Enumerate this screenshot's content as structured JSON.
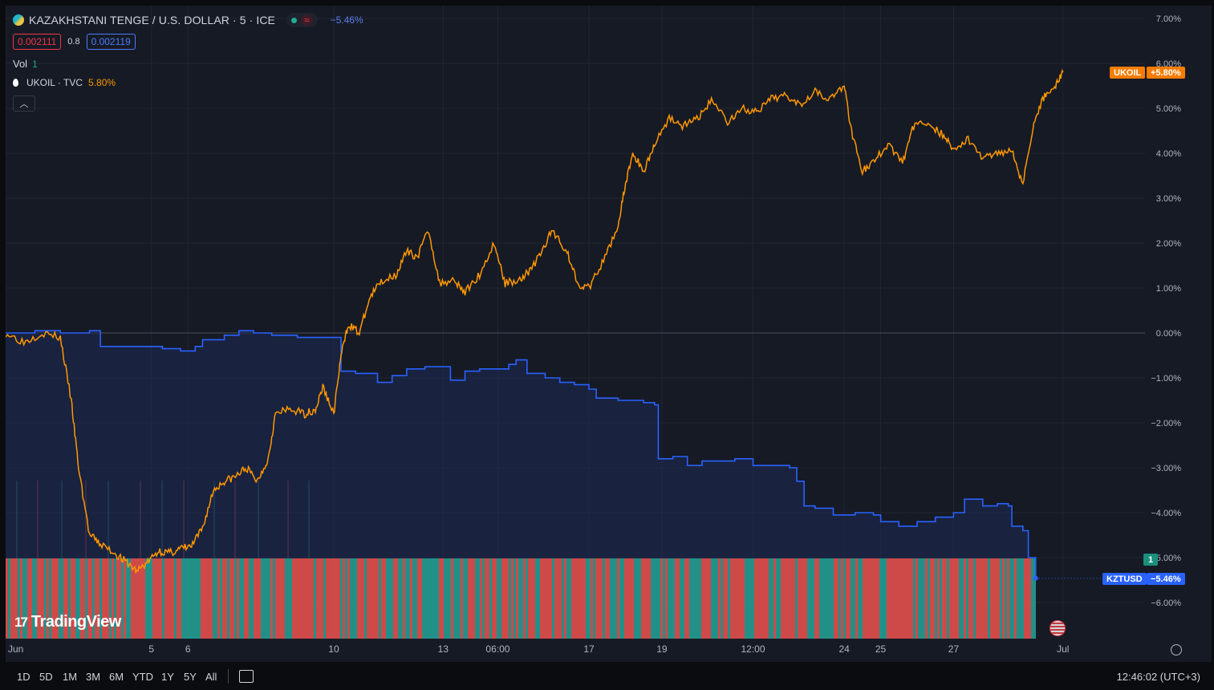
{
  "header": {
    "symbol_title": "KAZAKHSTANI TENGE / U.S. DOLLAR · 5 · ICE",
    "change_pct": "−5.46%",
    "status_wave": "≈",
    "bid": "0.002111",
    "spread": "0.8",
    "ask": "0.002119",
    "vol_label": "Vol",
    "vol_value": "1",
    "compare_label": "UKOIL · TVC",
    "compare_pct": "5.80%",
    "collapse_glyph": "︿"
  },
  "axis_tags": {
    "ukoil_symbol": "UKOIL",
    "ukoil_value": "+5.80%",
    "kztusd_symbol": "KZTUSD",
    "kztusd_value": "−5.46%",
    "volume_value": "1"
  },
  "logo": {
    "mark": "17",
    "text": "TradingView"
  },
  "toolbar": {
    "ranges": [
      "1D",
      "5D",
      "1M",
      "3M",
      "6M",
      "YTD",
      "1Y",
      "5Y",
      "All"
    ],
    "clock": "12:46:02 (UTC+3)"
  },
  "colors": {
    "pane_bg": "#161a25",
    "grid": "#222631",
    "kztusd_line": "#2962ff",
    "kztusd_fill": "#1e2a55",
    "ukoil_line": "#ff9800",
    "vol_up": "#26a69a",
    "vol_down": "#ef5350",
    "ukoil_tag": "#f57c00",
    "kztusd_tag": "#2962ff",
    "vol_tag": "#1a8f7d"
  },
  "icons": [
    "currency-flag-icon",
    "drop-icon",
    "calendar-icon",
    "settings-icon",
    "us-flag-icon",
    "chevron-up-icon"
  ],
  "chart_data": {
    "type": "line",
    "y_unit": "%",
    "ylim": [
      -7.0,
      7.0
    ],
    "y_ticks": [
      7,
      6,
      5,
      4,
      3,
      2,
      1,
      0,
      -1,
      -2,
      -3,
      -4,
      -5,
      -6
    ],
    "y_tick_labels": [
      "7.00%",
      "6.00%",
      "5.00%",
      "4.00%",
      "3.00%",
      "2.00%",
      "1.00%",
      "0.00%",
      "−1.00%",
      "−2.00%",
      "−3.00%",
      "−4.00%",
      "−5.00%",
      "−6.00%"
    ],
    "x_ticks": [
      {
        "label": "Jun",
        "x": 0
      },
      {
        "label": "5",
        "x": 4
      },
      {
        "label": "6",
        "x": 5
      },
      {
        "label": "10",
        "x": 9
      },
      {
        "label": "13",
        "x": 12
      },
      {
        "label": "06:00",
        "x": 13.5
      },
      {
        "label": "17",
        "x": 16
      },
      {
        "label": "19",
        "x": 18
      },
      {
        "label": "12:00",
        "x": 20.5
      },
      {
        "label": "24",
        "x": 23
      },
      {
        "label": "25",
        "x": 24
      },
      {
        "label": "27",
        "x": 26
      },
      {
        "label": "Jul",
        "x": 29
      }
    ],
    "xlim": [
      0,
      31.25
    ],
    "grid": true,
    "series": [
      {
        "name": "KZTUSD",
        "last": -5.46,
        "points": [
          [
            0,
            0
          ],
          [
            0.8,
            0.05
          ],
          [
            1.5,
            0.0
          ],
          [
            2.3,
            0.05
          ],
          [
            2.6,
            -0.3
          ],
          [
            3.4,
            -0.3
          ],
          [
            3.8,
            -0.3
          ],
          [
            4.3,
            -0.35
          ],
          [
            4.8,
            -0.4
          ],
          [
            5.2,
            -0.3
          ],
          [
            5.4,
            -0.15
          ],
          [
            6.0,
            -0.05
          ],
          [
            6.4,
            0.05
          ],
          [
            6.8,
            0.0
          ],
          [
            7.3,
            -0.05
          ],
          [
            8.0,
            -0.1
          ],
          [
            8.6,
            -0.1
          ],
          [
            9.0,
            -0.1
          ],
          [
            9.2,
            -0.85
          ],
          [
            9.6,
            -0.9
          ],
          [
            10.2,
            -1.1
          ],
          [
            10.6,
            -0.95
          ],
          [
            11.0,
            -0.8
          ],
          [
            11.5,
            -0.75
          ],
          [
            12.0,
            -0.75
          ],
          [
            12.2,
            -1.05
          ],
          [
            12.6,
            -0.85
          ],
          [
            13.0,
            -0.8
          ],
          [
            13.4,
            -0.8
          ],
          [
            13.8,
            -0.7
          ],
          [
            14.0,
            -0.6
          ],
          [
            14.3,
            -0.9
          ],
          [
            14.8,
            -1.0
          ],
          [
            15.2,
            -1.1
          ],
          [
            15.6,
            -1.15
          ],
          [
            16.0,
            -1.25
          ],
          [
            16.2,
            -1.45
          ],
          [
            16.8,
            -1.5
          ],
          [
            17.5,
            -1.55
          ],
          [
            17.8,
            -1.6
          ],
          [
            17.9,
            -2.8
          ],
          [
            18.3,
            -2.75
          ],
          [
            18.7,
            -2.95
          ],
          [
            19.1,
            -2.85
          ],
          [
            19.6,
            -2.85
          ],
          [
            20.0,
            -2.8
          ],
          [
            20.5,
            -2.95
          ],
          [
            21.0,
            -2.95
          ],
          [
            21.5,
            -3.0
          ],
          [
            21.7,
            -3.3
          ],
          [
            21.9,
            -3.85
          ],
          [
            22.2,
            -3.9
          ],
          [
            22.7,
            -4.05
          ],
          [
            23.3,
            -4.0
          ],
          [
            23.8,
            -4.05
          ],
          [
            24.0,
            -4.2
          ],
          [
            24.5,
            -4.3
          ],
          [
            25.0,
            -4.2
          ],
          [
            25.5,
            -4.1
          ],
          [
            26.0,
            -4.0
          ],
          [
            26.3,
            -3.7
          ],
          [
            26.8,
            -3.85
          ],
          [
            27.2,
            -3.8
          ],
          [
            27.5,
            -3.85
          ],
          [
            27.6,
            -4.3
          ],
          [
            27.9,
            -4.4
          ],
          [
            28.05,
            -5.0
          ],
          [
            28.25,
            -5.46
          ]
        ]
      },
      {
        "name": "UKOIL",
        "last": 5.8,
        "points": [
          [
            0,
            0
          ],
          [
            0.5,
            -0.2
          ],
          [
            1.0,
            0.0
          ],
          [
            1.5,
            -0.1
          ],
          [
            1.8,
            -1.5
          ],
          [
            2.0,
            -3.0
          ],
          [
            2.3,
            -4.5
          ],
          [
            2.6,
            -4.7
          ],
          [
            3.0,
            -4.9
          ],
          [
            3.3,
            -5.1
          ],
          [
            3.6,
            -5.3
          ],
          [
            3.9,
            -5.1
          ],
          [
            4.2,
            -4.85
          ],
          [
            4.5,
            -4.9
          ],
          [
            4.8,
            -4.8
          ],
          [
            5.1,
            -4.75
          ],
          [
            5.4,
            -4.35
          ],
          [
            5.7,
            -3.5
          ],
          [
            6.0,
            -3.3
          ],
          [
            6.3,
            -3.2
          ],
          [
            6.6,
            -3.0
          ],
          [
            6.9,
            -3.3
          ],
          [
            7.2,
            -2.8
          ],
          [
            7.4,
            -1.8
          ],
          [
            7.8,
            -1.7
          ],
          [
            8.2,
            -1.8
          ],
          [
            8.5,
            -1.7
          ],
          [
            8.7,
            -1.2
          ],
          [
            9.0,
            -1.8
          ],
          [
            9.2,
            -0.5
          ],
          [
            9.4,
            0.2
          ],
          [
            9.7,
            0.0
          ],
          [
            10.0,
            0.8
          ],
          [
            10.3,
            1.15
          ],
          [
            10.7,
            1.3
          ],
          [
            11.0,
            1.8
          ],
          [
            11.3,
            1.7
          ],
          [
            11.6,
            2.3
          ],
          [
            11.9,
            1.1
          ],
          [
            12.3,
            1.2
          ],
          [
            12.6,
            0.9
          ],
          [
            13.0,
            1.3
          ],
          [
            13.4,
            2.0
          ],
          [
            13.7,
            1.1
          ],
          [
            14.1,
            1.2
          ],
          [
            14.4,
            1.4
          ],
          [
            14.7,
            1.8
          ],
          [
            15.0,
            2.3
          ],
          [
            15.4,
            1.8
          ],
          [
            15.7,
            1.1
          ],
          [
            16.0,
            1.0
          ],
          [
            16.4,
            1.6
          ],
          [
            16.8,
            2.4
          ],
          [
            17.0,
            3.3
          ],
          [
            17.2,
            4.0
          ],
          [
            17.5,
            3.6
          ],
          [
            17.8,
            4.2
          ],
          [
            18.2,
            4.8
          ],
          [
            18.6,
            4.6
          ],
          [
            19.0,
            4.8
          ],
          [
            19.4,
            5.2
          ],
          [
            19.8,
            4.7
          ],
          [
            20.2,
            5.0
          ],
          [
            20.6,
            4.9
          ],
          [
            21.0,
            5.2
          ],
          [
            21.4,
            5.3
          ],
          [
            21.8,
            5.1
          ],
          [
            22.2,
            5.4
          ],
          [
            22.6,
            5.2
          ],
          [
            23.0,
            5.5
          ],
          [
            23.2,
            4.5
          ],
          [
            23.5,
            3.6
          ],
          [
            23.8,
            3.8
          ],
          [
            24.2,
            4.2
          ],
          [
            24.6,
            3.8
          ],
          [
            24.9,
            4.6
          ],
          [
            25.3,
            4.7
          ],
          [
            25.7,
            4.4
          ],
          [
            26.0,
            4.1
          ],
          [
            26.4,
            4.3
          ],
          [
            26.8,
            3.9
          ],
          [
            27.2,
            4.0
          ],
          [
            27.6,
            4.1
          ],
          [
            27.9,
            3.3
          ],
          [
            28.2,
            4.7
          ],
          [
            28.5,
            5.3
          ],
          [
            28.8,
            5.5
          ],
          [
            29.0,
            5.8
          ]
        ]
      }
    ]
  }
}
